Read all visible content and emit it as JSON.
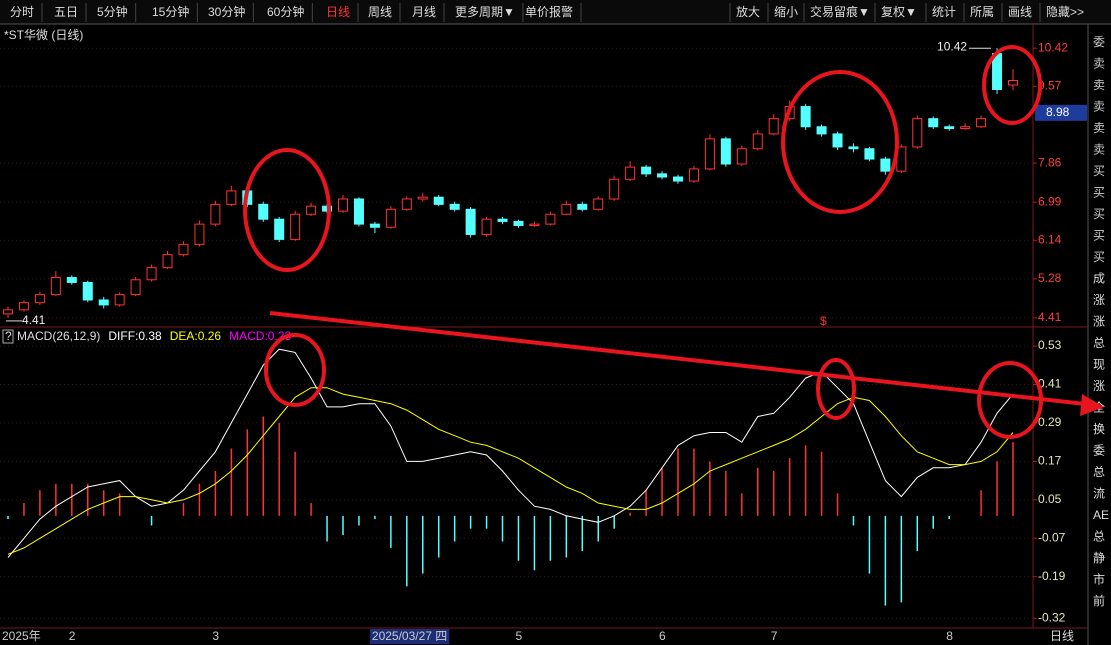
{
  "toolbar": {
    "left": [
      "分时",
      "五日",
      "5分钟",
      "15分钟",
      "30分钟",
      "60分钟",
      "日线",
      "周线",
      "月线",
      "更多周期▼",
      "单价报警"
    ],
    "selected": 6,
    "right": [
      "放大",
      "缩小",
      "交易留痕▼",
      "复权▼",
      "统计",
      "所属",
      "画线",
      "隐藏>>"
    ]
  },
  "side_panel": [
    "委",
    "卖",
    "卖",
    "卖",
    "卖",
    "卖",
    "买",
    "买",
    "买",
    "买",
    "买",
    "成",
    "涨",
    "涨",
    "总",
    "现",
    "涨",
    "全",
    "换",
    "委",
    "总",
    "流",
    "AE",
    "总",
    "静",
    "市",
    "前"
  ],
  "period_label": "日线",
  "chart_data": [
    {
      "type": "candlestick",
      "title": "*ST华微 (日线)",
      "categories": [
        "2025年",
        null,
        null,
        null,
        "2",
        null,
        null,
        null,
        null,
        null,
        null,
        null,
        null,
        "3",
        null,
        null,
        null,
        null,
        null,
        null,
        null,
        null,
        null,
        "2025/03/27 四",
        null,
        null,
        null,
        null,
        null,
        null,
        null,
        null,
        "5",
        null,
        null,
        null,
        null,
        null,
        null,
        null,
        null,
        "6",
        null,
        null,
        null,
        null,
        null,
        null,
        "7",
        null,
        null,
        null,
        null,
        null,
        null,
        null,
        null,
        null,
        null,
        "8",
        null,
        null,
        null,
        null
      ],
      "highlight": 23,
      "open": [
        4.5,
        4.59,
        4.75,
        4.93,
        5.31,
        5.2,
        4.81,
        4.7,
        4.93,
        5.26,
        5.53,
        5.82,
        6.05,
        6.5,
        6.94,
        7.24,
        6.94,
        6.61,
        6.16,
        6.72,
        6.9,
        6.79,
        7.06,
        6.5,
        6.43,
        6.83,
        7.06,
        7.1,
        6.94,
        6.83,
        6.27,
        6.61,
        6.56,
        6.47,
        6.5,
        6.72,
        6.94,
        6.83,
        7.06,
        7.5,
        7.77,
        7.62,
        7.55,
        7.46,
        7.73,
        8.4,
        7.84,
        8.18,
        8.51,
        8.85,
        9.12,
        8.67,
        8.51,
        8.22,
        8.18,
        7.95,
        7.68,
        8.22,
        8.85,
        8.67,
        8.63,
        8.67,
        10.3,
        9.6
      ],
      "high": [
        4.66,
        4.8,
        5.0,
        5.45,
        5.36,
        5.24,
        4.88,
        4.98,
        5.32,
        5.6,
        5.9,
        6.12,
        6.58,
        7.02,
        7.35,
        7.3,
        7.0,
        6.66,
        6.8,
        6.98,
        6.95,
        7.15,
        7.1,
        6.55,
        6.9,
        7.12,
        7.2,
        7.15,
        7.0,
        6.88,
        6.66,
        6.66,
        6.6,
        6.56,
        6.78,
        7.02,
        7.0,
        7.12,
        7.58,
        7.9,
        7.82,
        7.68,
        7.6,
        7.8,
        8.5,
        8.45,
        8.25,
        8.6,
        8.95,
        9.25,
        9.18,
        8.72,
        8.56,
        8.3,
        8.22,
        8.0,
        8.28,
        8.92,
        8.9,
        8.72,
        8.75,
        8.92,
        10.42,
        9.95
      ],
      "low": [
        4.41,
        4.55,
        4.7,
        4.9,
        5.15,
        4.76,
        4.62,
        4.66,
        4.9,
        5.22,
        5.5,
        5.78,
        6.0,
        6.45,
        6.9,
        6.88,
        6.55,
        6.1,
        6.12,
        6.68,
        6.74,
        6.75,
        6.45,
        6.3,
        6.4,
        6.8,
        7.0,
        6.9,
        6.78,
        6.2,
        6.22,
        6.5,
        6.42,
        6.44,
        6.47,
        6.7,
        6.78,
        6.8,
        7.02,
        7.46,
        7.55,
        7.5,
        7.4,
        7.42,
        7.7,
        7.78,
        7.8,
        8.14,
        8.48,
        8.8,
        8.6,
        8.45,
        8.15,
        8.1,
        7.9,
        7.6,
        7.64,
        8.18,
        8.62,
        8.58,
        8.6,
        8.64,
        9.4,
        9.48
      ],
      "close": [
        4.59,
        4.75,
        4.93,
        5.31,
        5.2,
        4.81,
        4.7,
        4.93,
        5.26,
        5.53,
        5.82,
        6.05,
        6.5,
        6.94,
        7.24,
        6.94,
        6.61,
        6.16,
        6.72,
        6.9,
        6.79,
        7.06,
        6.5,
        6.43,
        6.83,
        7.06,
        7.1,
        6.94,
        6.83,
        6.27,
        6.61,
        6.56,
        6.47,
        6.5,
        6.72,
        6.94,
        6.83,
        7.06,
        7.5,
        7.77,
        7.62,
        7.55,
        7.46,
        7.73,
        8.4,
        7.84,
        8.18,
        8.51,
        8.85,
        9.12,
        8.67,
        8.51,
        8.22,
        8.18,
        7.95,
        7.68,
        8.22,
        8.85,
        8.67,
        8.63,
        8.67,
        8.85,
        9.5,
        9.7
      ],
      "up_color": "#ff3232",
      "down_color": "#54ffff",
      "ylim": [
        4.23,
        10.87
      ],
      "yticks": [
        4.41,
        5.28,
        6.14,
        6.99,
        7.86,
        9.57,
        10.42
      ],
      "grid": true,
      "price_marker": 8.98,
      "signal": "$"
    },
    {
      "type": "macd",
      "title": "MACD(26,12,9)",
      "help_icon": "?",
      "series": [
        {
          "name": "DIFF:0.38",
          "color": "#ffffff",
          "values": [
            -0.13,
            -0.07,
            -0.01,
            0.03,
            0.06,
            0.09,
            0.1,
            0.11,
            0.06,
            0.03,
            0.04,
            0.08,
            0.14,
            0.2,
            0.29,
            0.38,
            0.47,
            0.52,
            0.51,
            0.43,
            0.34,
            0.34,
            0.35,
            0.35,
            0.28,
            0.17,
            0.17,
            0.18,
            0.19,
            0.2,
            0.19,
            0.14,
            0.08,
            0.03,
            0.02,
            0.0,
            -0.01,
            -0.02,
            0.0,
            0.03,
            0.08,
            0.15,
            0.22,
            0.25,
            0.26,
            0.26,
            0.23,
            0.31,
            0.32,
            0.37,
            0.43,
            0.45,
            0.4,
            0.35,
            0.23,
            0.11,
            0.06,
            0.12,
            0.15,
            0.15,
            0.16,
            0.23,
            0.32,
            0.38
          ]
        },
        {
          "name": "DEA:0.26",
          "color": "#ffff00",
          "values": [
            -0.12,
            -0.1,
            -0.07,
            -0.04,
            -0.01,
            0.02,
            0.04,
            0.06,
            0.06,
            0.05,
            0.04,
            0.05,
            0.07,
            0.1,
            0.14,
            0.19,
            0.25,
            0.31,
            0.37,
            0.4,
            0.4,
            0.38,
            0.37,
            0.36,
            0.35,
            0.33,
            0.3,
            0.27,
            0.25,
            0.23,
            0.22,
            0.2,
            0.18,
            0.15,
            0.12,
            0.09,
            0.07,
            0.04,
            0.03,
            0.02,
            0.02,
            0.04,
            0.07,
            0.1,
            0.14,
            0.16,
            0.18,
            0.2,
            0.22,
            0.24,
            0.27,
            0.31,
            0.35,
            0.37,
            0.36,
            0.31,
            0.25,
            0.2,
            0.18,
            0.16,
            0.16,
            0.17,
            0.2,
            0.26
          ]
        }
      ],
      "bars": {
        "name": "MACD:0.23",
        "color": "#ff00ff",
        "up_color": "#ff3232",
        "down_color": "#54ffff",
        "values": [
          -0.01,
          0.04,
          0.08,
          0.1,
          0.1,
          0.1,
          0.08,
          0.07,
          0.0,
          -0.03,
          0.0,
          0.04,
          0.1,
          0.14,
          0.21,
          0.27,
          0.31,
          0.29,
          0.2,
          0.04,
          -0.08,
          -0.06,
          -0.03,
          -0.01,
          -0.1,
          -0.22,
          -0.18,
          -0.13,
          -0.08,
          -0.04,
          -0.04,
          -0.08,
          -0.14,
          -0.17,
          -0.14,
          -0.13,
          -0.11,
          -0.08,
          -0.04,
          0.01,
          0.08,
          0.15,
          0.21,
          0.21,
          0.17,
          0.14,
          0.07,
          0.15,
          0.14,
          0.18,
          0.22,
          0.2,
          0.07,
          -0.03,
          -0.18,
          -0.28,
          -0.27,
          -0.11,
          -0.04,
          -0.01,
          0.0,
          0.08,
          0.17,
          0.23
        ]
      },
      "ylim": [
        -0.35,
        0.58
      ],
      "yticks": [
        0.53,
        0.41,
        0.29,
        0.17,
        0.05,
        -0.07,
        -0.19,
        -0.32
      ],
      "grid": true
    }
  ]
}
